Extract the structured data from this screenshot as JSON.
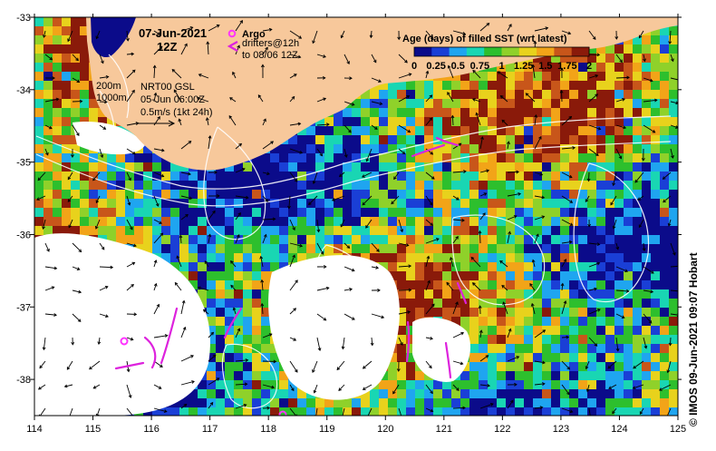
{
  "header": {
    "date": "07-Jun-2021",
    "hour": "12Z"
  },
  "legend_markers": {
    "argo": "Argo",
    "drifters": "drifters@12h",
    "drifters_to": "to 08/06 12Z"
  },
  "info_box": {
    "contour_a": "200m",
    "contour_b": "1000m",
    "product": "NRT00 GSL",
    "product_time": "05-Jun 06:00Z",
    "vector_scale": "0.5m/s (1kt 24h)"
  },
  "colorbar": {
    "title": "Age (days) of filled SST (wrt latest)",
    "labels": [
      "0",
      "0.25",
      "0.5",
      "0.75",
      "1",
      "1.25",
      "1.5",
      "1.75",
      "2"
    ],
    "colors": [
      "#0b0b8a",
      "#1a3fd6",
      "#1fa5f0",
      "#19d6b3",
      "#2dbf2d",
      "#8fd12a",
      "#e8d21c",
      "#f2a418",
      "#c8561a",
      "#8a1a0a"
    ]
  },
  "axes": {
    "x_ticks": [
      "114",
      "115",
      "116",
      "117",
      "118",
      "119",
      "120",
      "121",
      "122",
      "123",
      "124",
      "125"
    ],
    "y_ticks": [
      "-33",
      "-34",
      "-35",
      "-36",
      "-37",
      "-38"
    ]
  },
  "colors": {
    "land": "#f7c89b",
    "argo": "#ff33ff",
    "drifter": "#dd22dd",
    "deep_water": "#0b0b8a"
  },
  "credit": "©  IMOS 09-Jun-2021 09:07 Hobart"
}
